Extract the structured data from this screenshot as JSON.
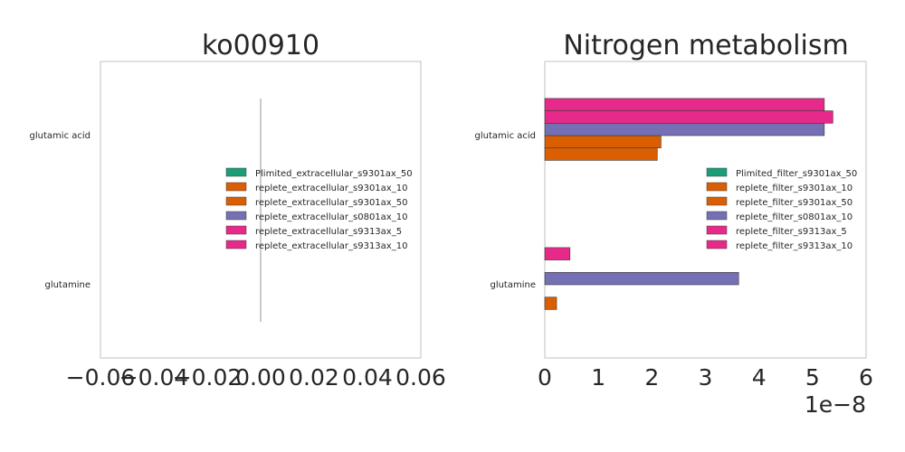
{
  "chart_data": [
    {
      "type": "bar",
      "orientation": "horizontal",
      "title": "ko00910",
      "categories": [
        "glutamic acid",
        "glutamine"
      ],
      "xlim": [
        -0.06,
        0.06
      ],
      "xticks": [
        "−0.06",
        "−0.04",
        "−0.02",
        "0.00",
        "0.02",
        "0.04",
        "0.06"
      ],
      "grid": false,
      "legend_position": "center-right",
      "series": [
        {
          "name": "Plimited_extracellular_s9301ax_50",
          "color": "#1b9e77",
          "values": [
            0,
            0
          ]
        },
        {
          "name": "replete_extracellular_s9301ax_10",
          "color": "#d95f02",
          "values": [
            0,
            0
          ]
        },
        {
          "name": "replete_extracellular_s9301ax_50",
          "color": "#d95f02",
          "values": [
            0,
            0
          ]
        },
        {
          "name": "replete_extracellular_s0801ax_10",
          "color": "#7570b3",
          "values": [
            0,
            0
          ]
        },
        {
          "name": "replete_extracellular_s9313ax_5",
          "color": "#e7298a",
          "values": [
            0,
            0
          ]
        },
        {
          "name": "replete_extracellular_s9313ax_10",
          "color": "#e7298a",
          "values": [
            0,
            0
          ]
        }
      ]
    },
    {
      "type": "bar",
      "orientation": "horizontal",
      "title": "Nitrogen metabolism",
      "categories": [
        "glutamic acid",
        "glutamine"
      ],
      "xlim": [
        0,
        6
      ],
      "xticks": [
        "0",
        "1",
        "2",
        "3",
        "4",
        "5",
        "6"
      ],
      "x_scale_label": "1e−8",
      "grid": false,
      "legend_position": "center-right",
      "series": [
        {
          "name": "Plimited_filter_s9301ax_50",
          "color": "#1b9e77",
          "values": [
            0,
            0
          ]
        },
        {
          "name": "replete_filter_s9301ax_10",
          "color": "#d95f02",
          "values": [
            2.1,
            0.22
          ]
        },
        {
          "name": "replete_filter_s9301ax_50",
          "color": "#d95f02",
          "values": [
            2.17,
            0
          ]
        },
        {
          "name": "replete_filter_s0801ax_10",
          "color": "#7570b3",
          "values": [
            5.22,
            3.62
          ]
        },
        {
          "name": "replete_filter_s9313ax_5",
          "color": "#e7298a",
          "values": [
            5.38,
            0
          ]
        },
        {
          "name": "replete_filter_s9313ax_10",
          "color": "#e7298a",
          "values": [
            5.22,
            0.47
          ]
        }
      ]
    }
  ]
}
